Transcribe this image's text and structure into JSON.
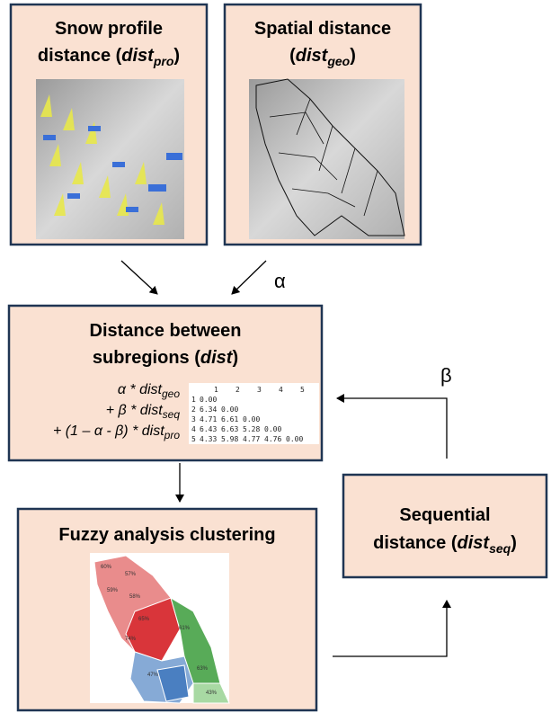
{
  "boxes": {
    "snow_profile": {
      "title": "Snow profile",
      "prefix": "distance (",
      "var": "dist",
      "sub": "pro",
      "suffix": ")"
    },
    "spatial": {
      "title": "Spatial distance",
      "prefix": "(",
      "var": "dist",
      "sub": "geo",
      "suffix": ")"
    },
    "distance": {
      "title": "Distance between",
      "prefix": "subregions (",
      "var": "dist",
      "suffix": ")"
    },
    "fuzzy": {
      "title": "Fuzzy analysis clustering"
    },
    "sequential": {
      "title": "Sequential",
      "prefix": "distance (",
      "var": "dist",
      "sub": "seq",
      "suffix": ")"
    }
  },
  "formula": [
    {
      "prefix": "α * ",
      "var": "dist",
      "sub": "geo"
    },
    {
      "prefix": "+ β * ",
      "var": "dist",
      "sub": "seq"
    },
    {
      "prefix": "+ (1 – α - β) * ",
      "var": "dist",
      "sub": "pro"
    }
  ],
  "matrix": {
    "header": [
      "1",
      "2",
      "3",
      "4",
      "5"
    ],
    "rows": [
      [
        "1",
        "0.00"
      ],
      [
        "2",
        "6.34",
        "0.00"
      ],
      [
        "3",
        "4.71",
        "6.61",
        "0.00"
      ],
      [
        "4",
        "6.43",
        "6.63",
        "5.28",
        "0.00"
      ],
      [
        "5",
        "4.33",
        "5.98",
        "4.77",
        "4.76",
        "0.00"
      ]
    ]
  },
  "map_labels": [
    "60%",
    "57%",
    "59%",
    "58%",
    "65%",
    "74%",
    "61%",
    "47%",
    "43%",
    "63%"
  ],
  "arrows": {
    "alpha": "α",
    "beta": "β"
  }
}
